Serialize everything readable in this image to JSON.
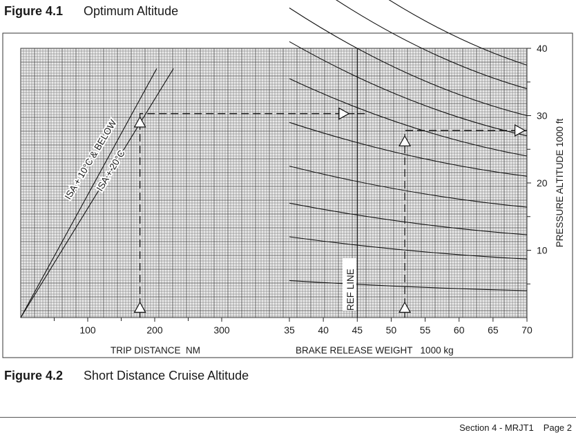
{
  "header": {
    "fig1_number": "Figure 4.1",
    "fig1_caption": "Optimum Altitude",
    "fig2_number": "Figure 4.2",
    "fig2_caption": "Short Distance Cruise Altitude"
  },
  "footer": {
    "section": "Section 4 - MRJT1",
    "page": "Page 2"
  },
  "chart_data": {
    "type": "line",
    "grid": true,
    "left_panel": {
      "xlabel": "TRIP DISTANCE  NM",
      "xlim": [
        0,
        300
      ],
      "xticks": [
        100,
        200,
        300
      ],
      "series": [
        {
          "name": "ISA + 10°C & BELOW",
          "x": [
            0,
            203
          ],
          "y": [
            0,
            37
          ]
        },
        {
          "name": "ISA + 20°C",
          "x": [
            0,
            228
          ],
          "y": [
            0,
            37
          ]
        }
      ]
    },
    "right_panel": {
      "xlabel": "BRAKE RELEASE WEIGHT   1000 kg",
      "xlim": [
        35,
        70
      ],
      "xticks": [
        35,
        40,
        45,
        50,
        55,
        60,
        65,
        70
      ],
      "ref_line_label": "REF LINE",
      "ref_line_x": 45,
      "curves": [
        {
          "x": [
            35,
            70
          ],
          "y": [
            5.5,
            4
          ]
        },
        {
          "x": [
            35,
            70
          ],
          "y": [
            12,
            8.7
          ]
        },
        {
          "x": [
            35,
            70
          ],
          "y": [
            17,
            12.3
          ]
        },
        {
          "x": [
            35,
            70
          ],
          "y": [
            22.5,
            16.4
          ]
        },
        {
          "x": [
            35,
            70
          ],
          "y": [
            29,
            21
          ]
        },
        {
          "x": [
            35,
            70
          ],
          "y": [
            35.5,
            24
          ]
        },
        {
          "x": [
            35,
            70
          ],
          "y": [
            41,
            27
          ]
        },
        {
          "x": [
            35,
            70
          ],
          "y": [
            46,
            30
          ]
        },
        {
          "x": [
            35,
            70
          ],
          "y": [
            52,
            34
          ]
        },
        {
          "x": [
            35,
            70
          ],
          "y": [
            58,
            37.5
          ]
        }
      ]
    },
    "ylabel": "PRESSURE ALTITUDE   1000 ft",
    "ylim": [
      0,
      40
    ],
    "yticks": [
      10,
      20,
      30,
      40
    ],
    "example": {
      "trip_distance": 178,
      "altitude_at_distance": 30.3,
      "brake_release_weight": 52,
      "result_altitude": 27.8
    }
  }
}
